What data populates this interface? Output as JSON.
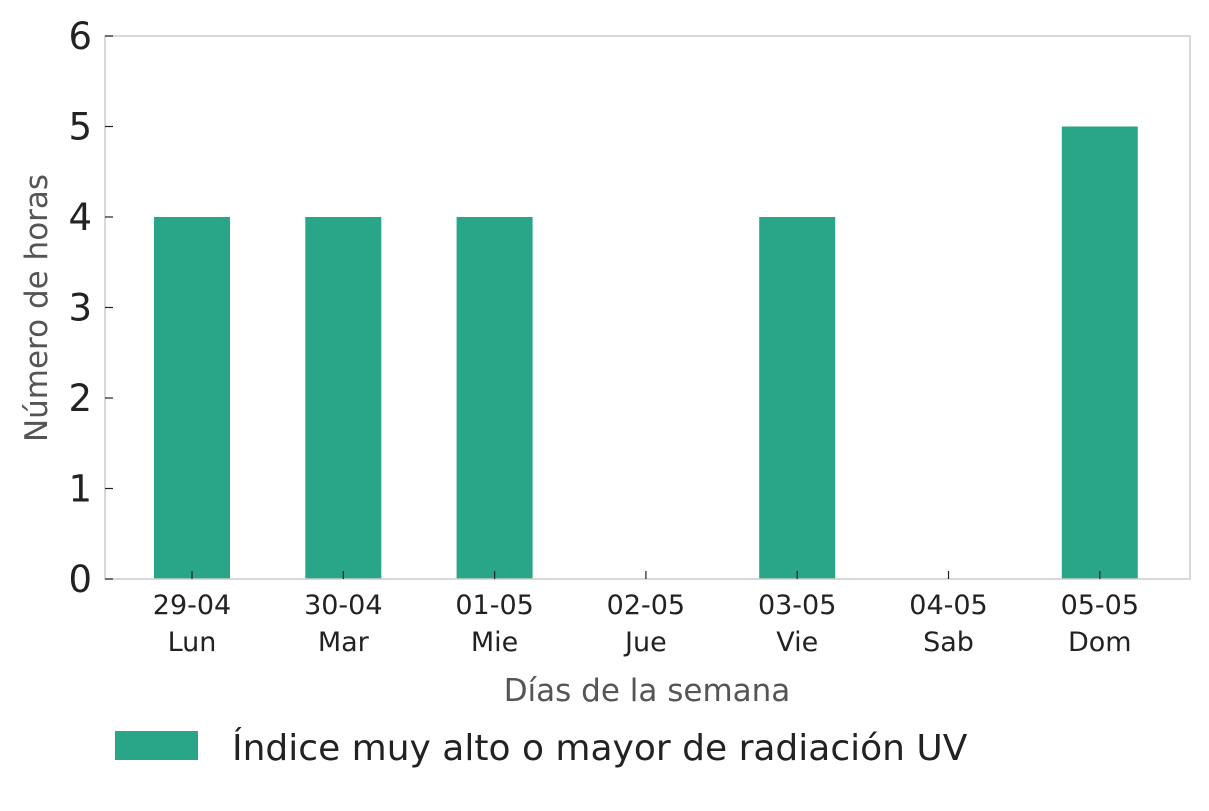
{
  "chart_data": {
    "type": "bar",
    "categories": [
      {
        "date": "29-04",
        "day": "Lun"
      },
      {
        "date": "30-04",
        "day": "Mar"
      },
      {
        "date": "01-05",
        "day": "Mie"
      },
      {
        "date": "02-05",
        "day": "Jue"
      },
      {
        "date": "03-05",
        "day": "Vie"
      },
      {
        "date": "04-05",
        "day": "Sab"
      },
      {
        "date": "05-05",
        "day": "Dom"
      }
    ],
    "series": [
      {
        "name": "Índice muy alto o mayor de radiación UV",
        "values": [
          4,
          4,
          4,
          0,
          4,
          0,
          5
        ],
        "color": "#28a687"
      }
    ],
    "xlabel": "Días de la semana",
    "ylabel": "Número de horas",
    "ylim": [
      0,
      6
    ],
    "yticks": [
      0,
      1,
      2,
      3,
      4,
      5,
      6
    ],
    "grid": false,
    "legend_position": "bottom-left"
  },
  "colors": {
    "axis_frame": "#cccccc",
    "tick_text": "#222222",
    "label_text": "#555555"
  }
}
